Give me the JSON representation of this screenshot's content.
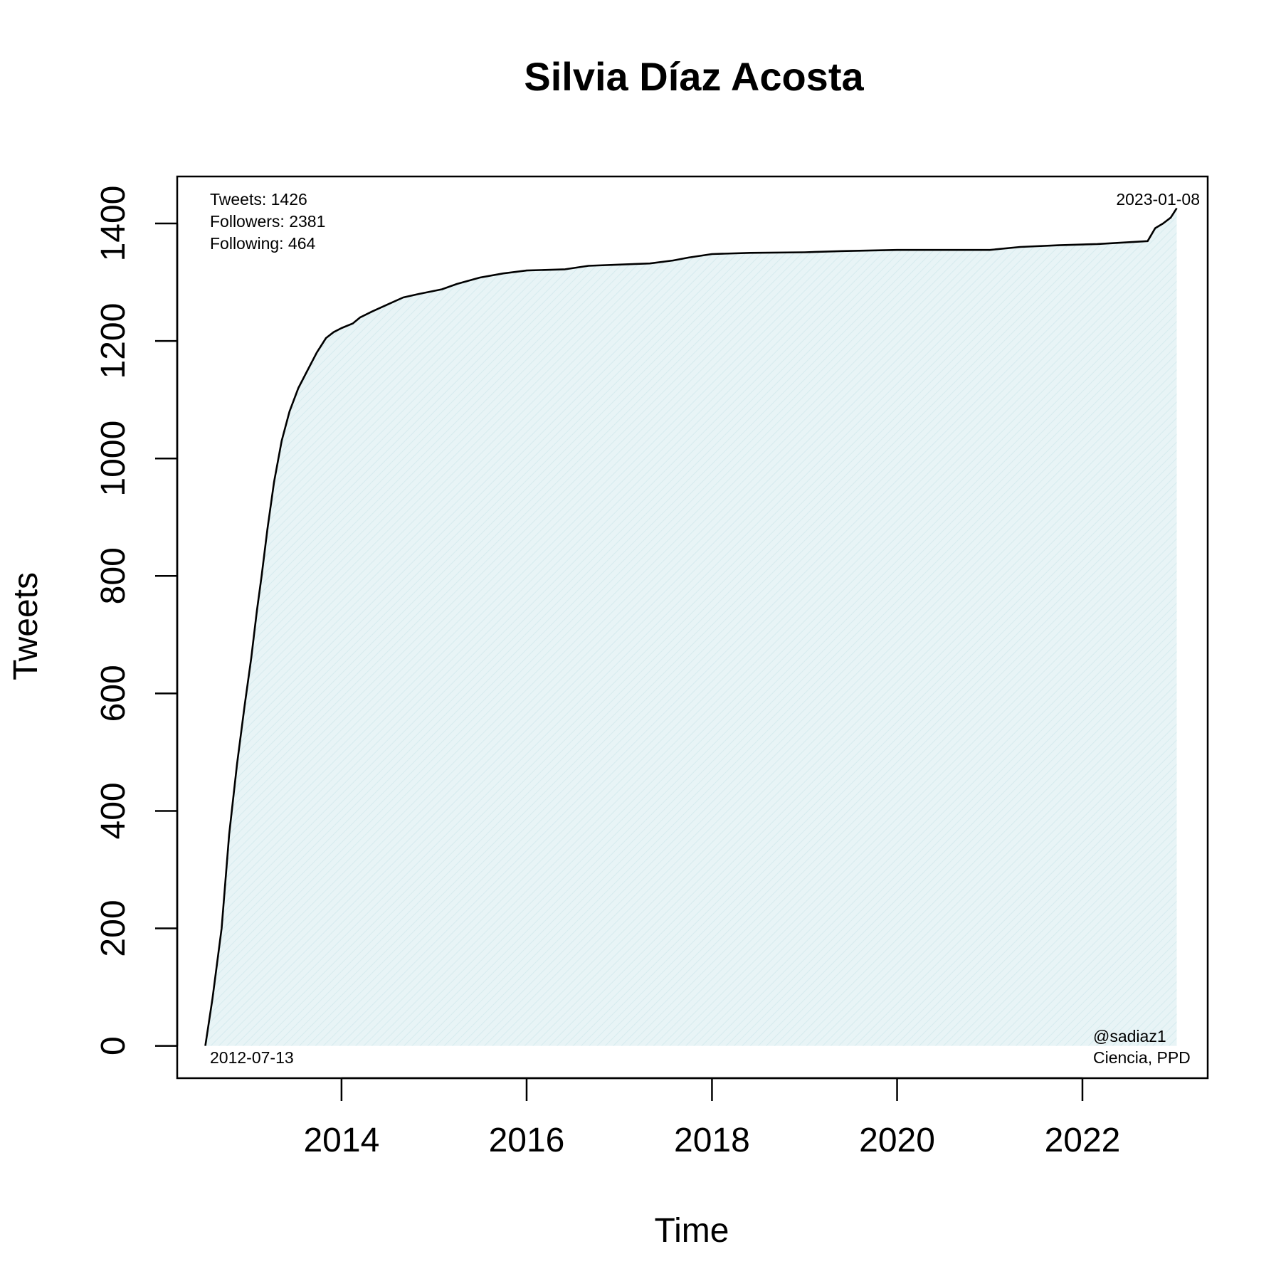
{
  "chart_data": {
    "type": "area",
    "title": "Silvia Díaz Acosta",
    "xlabel": "Time",
    "ylabel": "Tweets",
    "xlim": [
      "2012-03-24",
      "2023-05-10"
    ],
    "ylim": [
      -55,
      1480
    ],
    "x_ticks": [
      "2014-01-01",
      "2016-01-01",
      "2018-01-01",
      "2020-01-01",
      "2022-01-01"
    ],
    "x_tick_labels": [
      "2014",
      "2016",
      "2018",
      "2020",
      "2022"
    ],
    "y_ticks": [
      0,
      200,
      400,
      600,
      800,
      1000,
      1200,
      1400
    ],
    "y_tick_labels": [
      "0",
      "200",
      "400",
      "600",
      "800",
      "1000",
      "1200",
      "1400"
    ],
    "grid": false,
    "fill_color": "#e6f3f5",
    "line_color": "#000000",
    "series": [
      {
        "x": [
          "2012-07-13",
          "2012-08-10",
          "2012-09-15",
          "2012-10-15",
          "2012-11-15",
          "2012-12-15",
          "2013-01-10",
          "2013-02-01",
          "2013-02-20",
          "2013-03-15",
          "2013-04-10",
          "2013-05-10",
          "2013-06-10",
          "2013-07-15",
          "2013-08-20",
          "2013-09-25",
          "2013-11-01",
          "2013-12-01",
          "2014-01-01",
          "2014-02-15",
          "2014-03-15",
          "2014-05-01",
          "2014-07-01",
          "2014-09-01",
          "2014-11-01",
          "2015-02-01",
          "2015-04-01",
          "2015-07-01",
          "2015-10-01",
          "2016-01-01",
          "2016-06-01",
          "2016-09-01",
          "2017-01-01",
          "2017-05-01",
          "2017-08-01",
          "2017-10-01",
          "2018-01-01",
          "2018-06-01",
          "2019-01-01",
          "2019-06-01",
          "2020-01-01",
          "2020-07-01",
          "2021-01-01",
          "2021-05-01",
          "2021-10-01",
          "2022-03-01",
          "2022-09-15",
          "2022-10-15",
          "2022-11-15",
          "2022-12-15",
          "2023-01-08"
        ],
        "y": [
          0,
          80,
          200,
          360,
          480,
          580,
          660,
          740,
          800,
          880,
          960,
          1030,
          1080,
          1120,
          1150,
          1180,
          1205,
          1215,
          1222,
          1230,
          1240,
          1250,
          1262,
          1274,
          1280,
          1288,
          1297,
          1308,
          1315,
          1320,
          1322,
          1328,
          1330,
          1332,
          1337,
          1342,
          1348,
          1350,
          1351,
          1353,
          1355,
          1355,
          1355,
          1360,
          1363,
          1365,
          1370,
          1392,
          1400,
          1410,
          1426
        ]
      }
    ],
    "annotations": {
      "stats": [
        "Tweets: 1426",
        "Followers: 2381",
        "Following: 464"
      ],
      "start_date": "2012-07-13",
      "end_date": "2023-01-08",
      "handle": "@sadiaz1",
      "affiliation": "Ciencia, PPD"
    }
  }
}
